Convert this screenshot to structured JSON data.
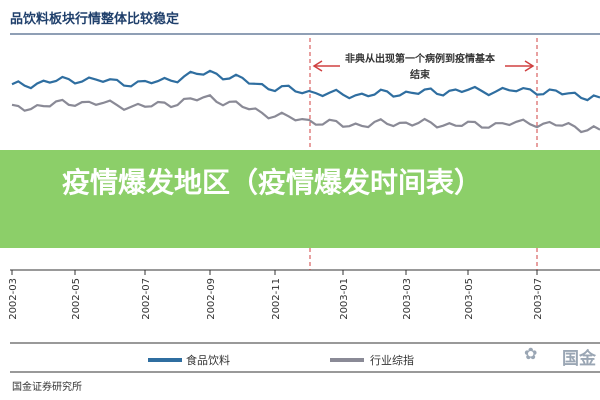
{
  "chart_data": {
    "type": "line",
    "title": "品饮料板块行情整体比较稳定",
    "annotation": "非典从出现第一个病例到疫情基本结束",
    "x": [
      "2002-03",
      "2002-05",
      "2002-07",
      "2002-09",
      "2002-11",
      "2003-01",
      "2003-03",
      "2003-05",
      "2003-07",
      "2003-09"
    ],
    "series": [
      {
        "name": "食品饮料",
        "color": "#2f6ea0",
        "values": [
          80,
          83,
          81,
          86,
          79,
          76,
          77,
          78,
          78,
          75
        ]
      },
      {
        "name": "行业综指",
        "color": "#8a8a96",
        "values": [
          70,
          73,
          71,
          75,
          67,
          63,
          64,
          63,
          64,
          61
        ]
      }
    ],
    "ylim": [
      0,
      100
    ],
    "legend": "bottom"
  },
  "overlay": {
    "heading": "疫情爆发地区（疫情爆发时间表）"
  },
  "footer": {
    "source": "国金证券研究所",
    "brand": "国金"
  },
  "colors": {
    "banner": "#8ccf69",
    "axis": "#333333",
    "annotation_line": "#d04040"
  }
}
